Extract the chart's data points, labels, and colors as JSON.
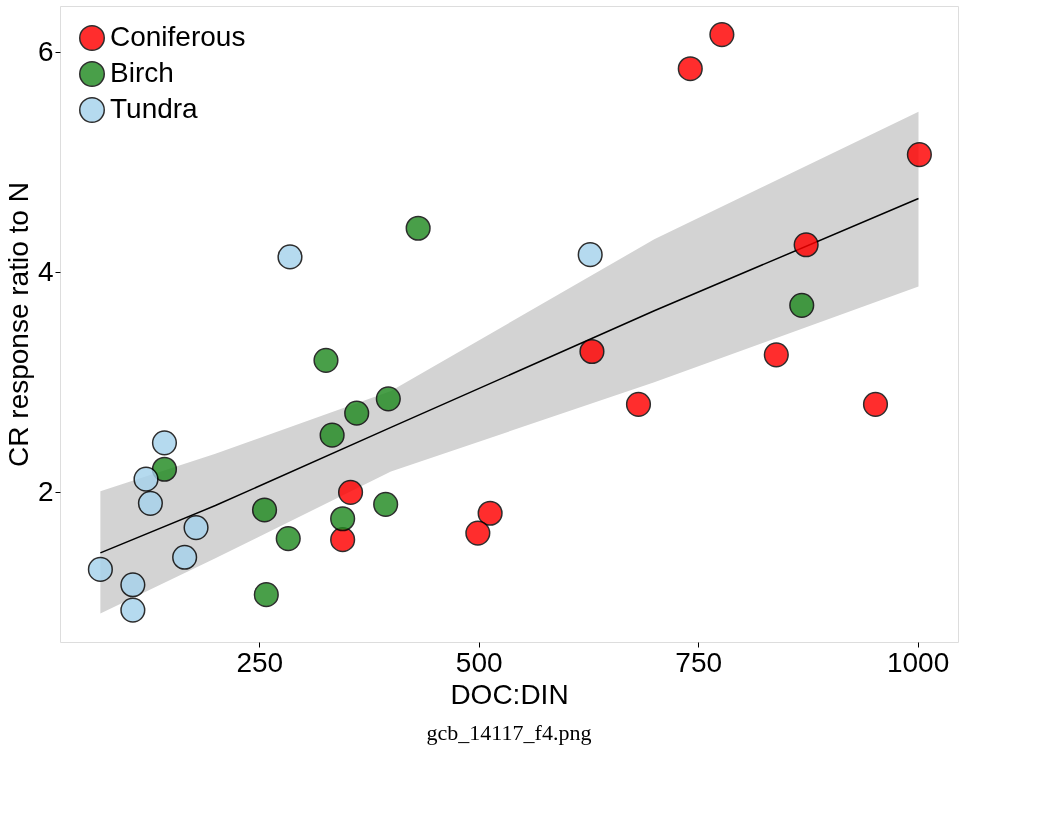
{
  "chart_data": {
    "type": "scatter",
    "xlabel": "DOC:DIN",
    "ylabel": "CR response ratio to N",
    "annotations": [
      "gcb_14117_f4.png"
    ],
    "xlim": [
      23,
      1046
    ],
    "ylim": [
      0.64,
      6.42
    ],
    "xticks": [
      250,
      500,
      750,
      1000
    ],
    "yticks": [
      2,
      4,
      6
    ],
    "grid": false,
    "legend": "top left",
    "marker": "circle",
    "series": [
      {
        "name": "Coniferous",
        "color": "#ff0000",
        "x": [
          777,
          741,
          1002,
          873,
          629,
          839,
          682,
          952,
          354,
          345,
          513,
          499
        ],
        "values": [
          6.16,
          5.85,
          5.07,
          4.25,
          3.28,
          3.25,
          2.8,
          2.8,
          2.0,
          1.57,
          1.81,
          1.63
        ]
      },
      {
        "name": "Birch",
        "color": "#228b22",
        "x": [
          431,
          326,
          397,
          361,
          333,
          142,
          256,
          394,
          345,
          283,
          258,
          868
        ],
        "values": [
          4.4,
          3.2,
          2.85,
          2.72,
          2.52,
          2.21,
          1.84,
          1.89,
          1.76,
          1.58,
          1.07,
          3.7
        ]
      },
      {
        "name": "Tundra",
        "color": "#a6d2ec",
        "x": [
          285,
          627,
          142,
          121,
          126,
          178,
          165,
          69,
          106,
          106
        ],
        "values": [
          4.14,
          4.16,
          2.45,
          2.12,
          1.9,
          1.68,
          1.41,
          1.3,
          1.16,
          0.93
        ]
      },
      {
        "type": "line",
        "marker": "none",
        "color": "#000000",
        "x": [
          69,
          200,
          400,
          700,
          1001
        ],
        "values": [
          1.45,
          1.88,
          2.59,
          3.65,
          4.67
        ],
        "lower": [
          0.9,
          1.4,
          2.19,
          3.0,
          3.87
        ],
        "upper": [
          2.01,
          2.35,
          2.92,
          4.3,
          5.46
        ]
      }
    ]
  }
}
